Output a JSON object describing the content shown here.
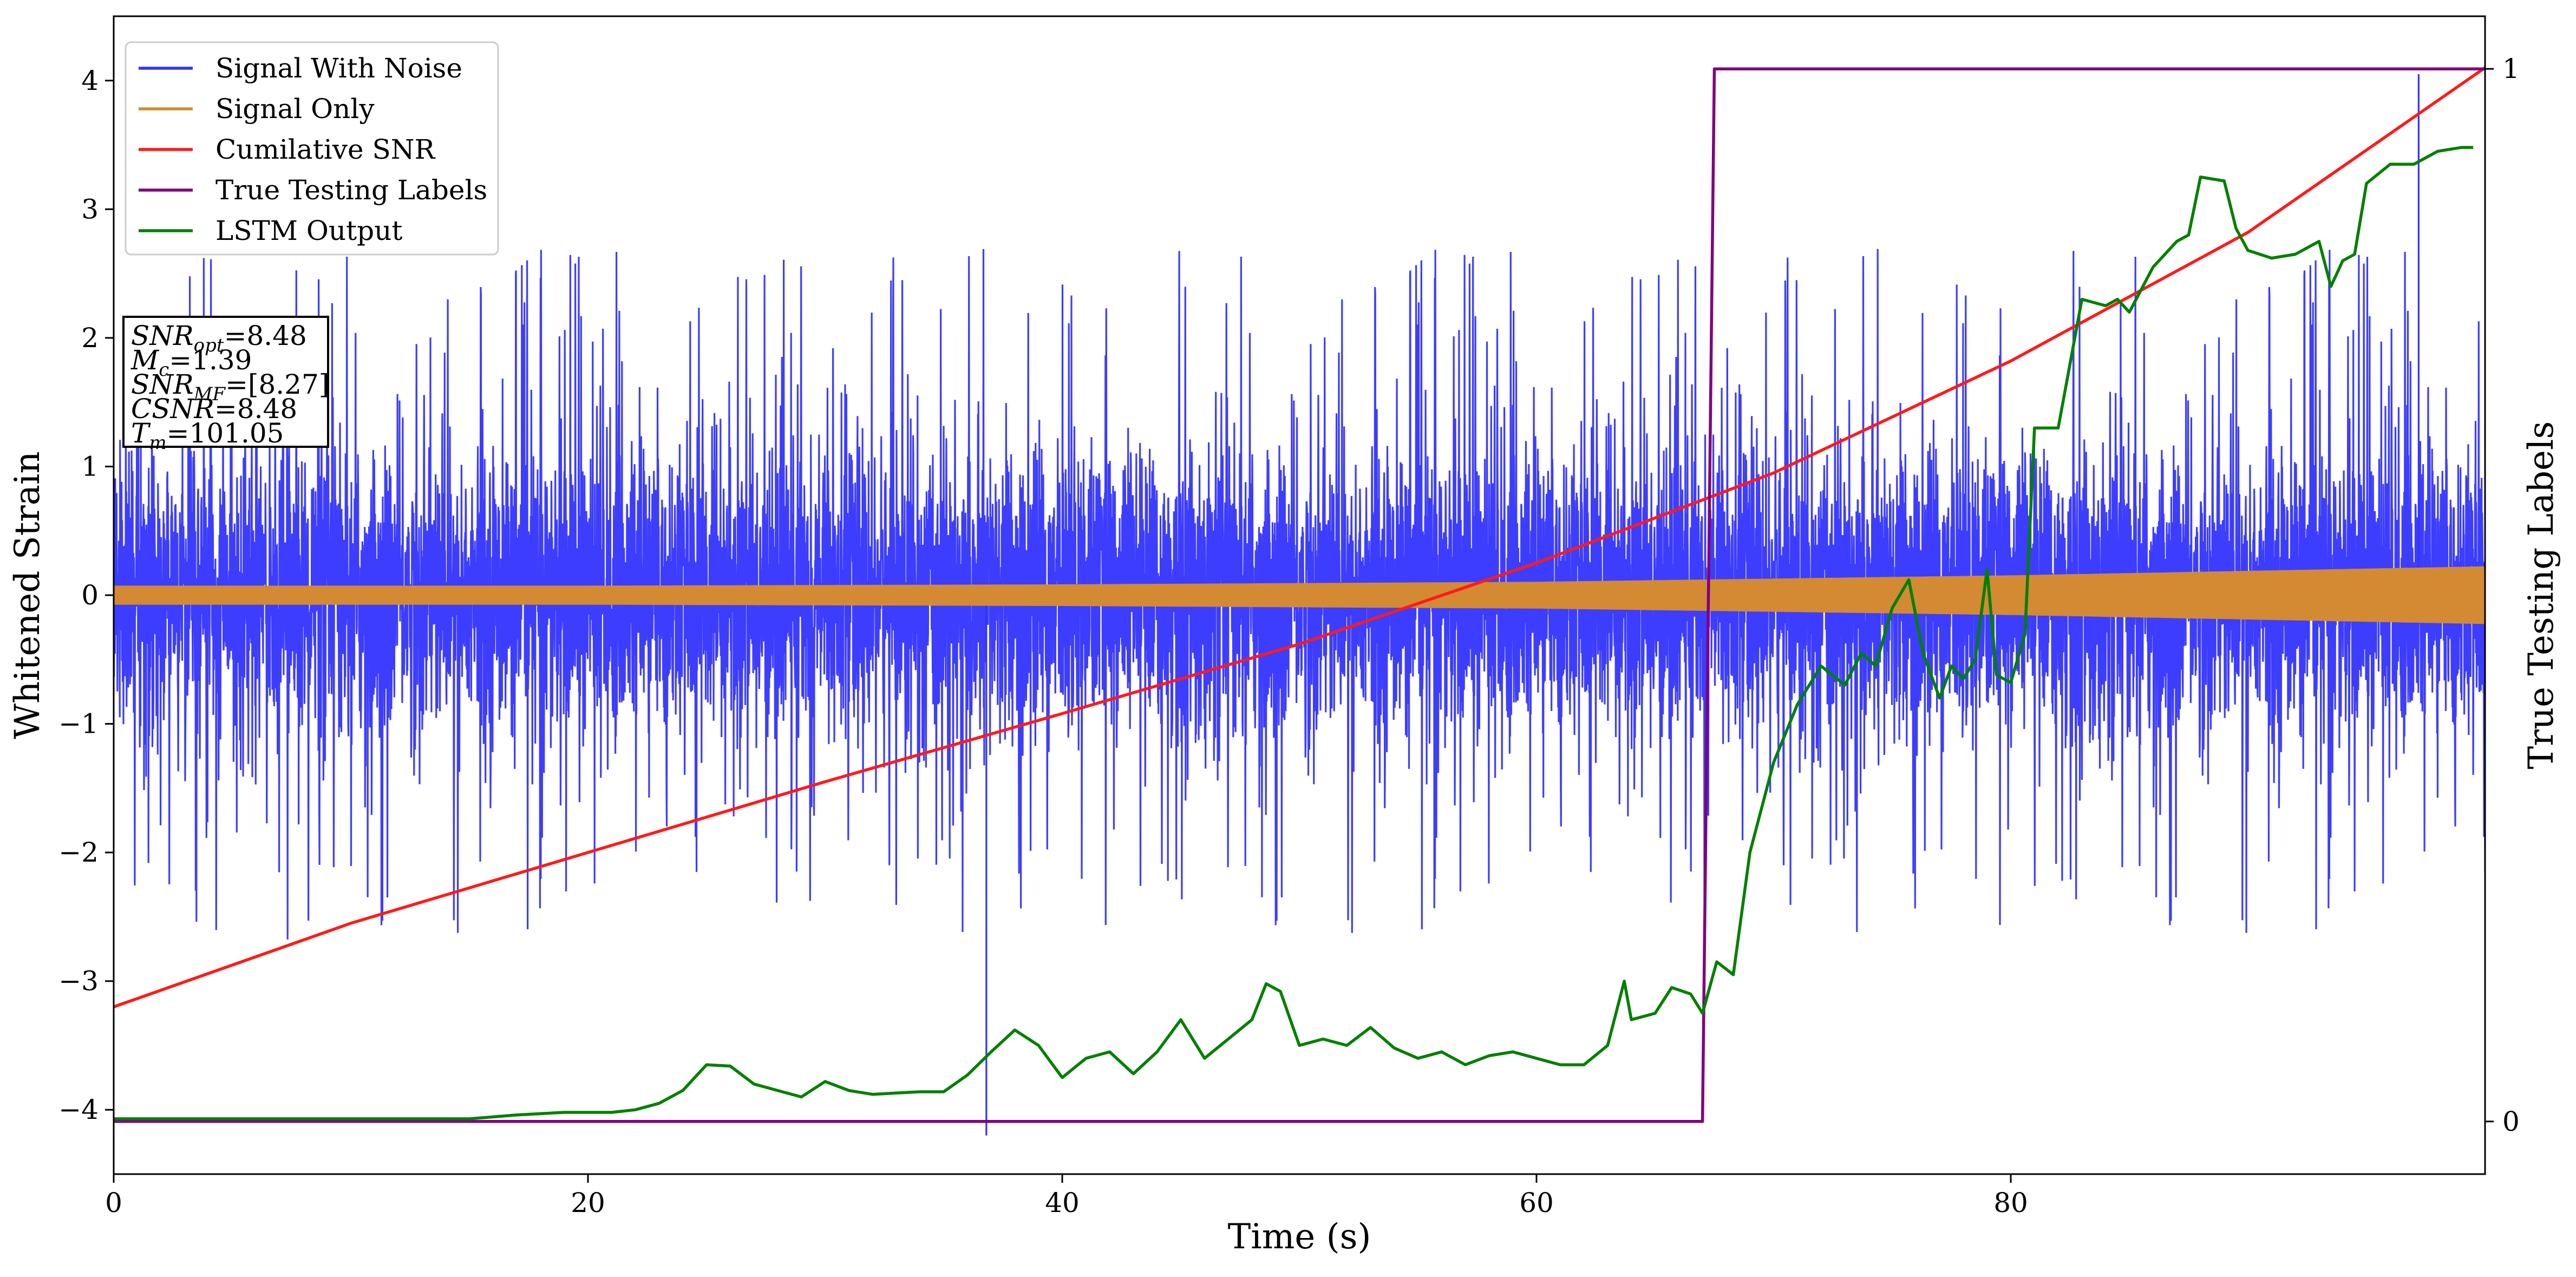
{
  "chart_data": {
    "type": "line",
    "xlabel": "Time (s)",
    "ylabel": "Whitened Strain",
    "y2label": "True Testing Labels",
    "xlim": [
      0,
      100
    ],
    "ylim": [
      -4.5,
      4.5
    ],
    "y2lim": [
      -0.05,
      1.05
    ],
    "xticks": [
      "0",
      "20",
      "40",
      "60",
      "80"
    ],
    "yticks": [
      "−4",
      "−3",
      "−2",
      "−1",
      "0",
      "1",
      "2",
      "3",
      "4"
    ],
    "y2ticks": [
      "0",
      "1"
    ],
    "legend_position": "top-left",
    "grid": false,
    "series": [
      {
        "name": "Signal With Noise",
        "color": "#3333ff",
        "axis": "left",
        "description": "dense noisy strain, approx zero mean",
        "core_band": [
          -0.9,
          0.9
        ],
        "typical_spikes": [
          -2.3,
          2.2
        ],
        "extreme_values": {
          "max": 4.05,
          "max_at": 97.2,
          "min": -4.2,
          "min_at": 36.8
        }
      },
      {
        "name": "Signal Only",
        "color": "#d48a32",
        "axis": "left",
        "description": "chirp envelope growing with time",
        "envelope": [
          [
            0,
            0.07
          ],
          [
            20,
            0.07
          ],
          [
            40,
            0.08
          ],
          [
            60,
            0.1
          ],
          [
            80,
            0.15
          ],
          [
            100,
            0.22
          ]
        ]
      },
      {
        "name": "Cumilative SNR",
        "color": "#ff1a1a",
        "axis": "left",
        "x": [
          0,
          10,
          20,
          30,
          40,
          50,
          60,
          70,
          80,
          90,
          100
        ],
        "y": [
          -3.2,
          -2.55,
          -2.0,
          -1.45,
          -0.92,
          -0.38,
          0.25,
          0.95,
          1.82,
          2.82,
          4.1
        ]
      },
      {
        "name": "True Testing Labels",
        "color": "#800080",
        "axis": "right",
        "x": [
          0,
          67.0,
          67.5,
          100
        ],
        "y": [
          0,
          0,
          1,
          1
        ]
      },
      {
        "name": "LSTM Output",
        "color": "#008000",
        "axis": "left",
        "x": [
          0,
          15,
          17,
          19,
          21,
          22,
          23,
          24,
          25,
          26,
          27,
          28,
          29,
          30,
          31,
          32,
          33,
          34,
          35,
          36,
          37,
          38,
          39,
          40,
          41,
          42,
          43,
          44,
          45,
          46,
          47,
          48,
          48.6,
          49.2,
          50,
          51,
          52,
          53,
          54,
          55,
          56,
          57,
          58,
          59,
          60,
          61,
          62,
          63,
          63.7,
          64,
          65,
          65.7,
          66.5,
          67,
          67.6,
          68.3,
          69,
          70,
          71,
          72,
          73,
          73.7,
          74.3,
          75,
          75.7,
          76.3,
          77,
          77.5,
          78,
          78.5,
          79,
          79.4,
          80,
          80.6,
          81,
          82,
          82.6,
          83,
          84,
          84.5,
          85,
          86,
          87,
          87.5,
          88,
          89,
          89.5,
          90,
          91,
          92,
          93,
          93.5,
          94,
          94.5,
          95,
          96,
          97,
          98,
          99,
          99.5
        ],
        "y": [
          -4.07,
          -4.07,
          -4.04,
          -4.02,
          -4.02,
          -4.0,
          -3.95,
          -3.85,
          -3.65,
          -3.66,
          -3.8,
          -3.85,
          -3.9,
          -3.78,
          -3.85,
          -3.88,
          -3.87,
          -3.86,
          -3.86,
          -3.73,
          -3.55,
          -3.38,
          -3.5,
          -3.75,
          -3.6,
          -3.55,
          -3.72,
          -3.55,
          -3.3,
          -3.6,
          -3.45,
          -3.3,
          -3.02,
          -3.08,
          -3.5,
          -3.45,
          -3.5,
          -3.36,
          -3.52,
          -3.6,
          -3.55,
          -3.65,
          -3.58,
          -3.55,
          -3.6,
          -3.65,
          -3.65,
          -3.5,
          -3.0,
          -3.3,
          -3.25,
          -3.05,
          -3.1,
          -3.25,
          -2.85,
          -2.95,
          -2.0,
          -1.3,
          -0.85,
          -0.55,
          -0.7,
          -0.45,
          -0.55,
          -0.1,
          0.12,
          -0.45,
          -0.8,
          -0.55,
          -0.65,
          -0.5,
          0.2,
          -0.62,
          -0.68,
          -0.3,
          1.3,
          1.3,
          1.9,
          2.3,
          2.25,
          2.3,
          2.2,
          2.55,
          2.75,
          2.8,
          3.25,
          3.22,
          2.85,
          2.68,
          2.62,
          2.65,
          2.75,
          2.4,
          2.6,
          2.65,
          3.2,
          3.35,
          3.35,
          3.45,
          3.48,
          3.48
        ]
      }
    ],
    "annotation": {
      "lines": [
        {
          "base": "SNR",
          "sub": "opt",
          "value": "=8.48"
        },
        {
          "base": "M",
          "sub": "c",
          "value": "=1.39"
        },
        {
          "base": "SNR",
          "sub": "MF",
          "value": "=[8.27]"
        },
        {
          "base": "CSNR",
          "sub": "",
          "value": "=8.48"
        },
        {
          "base": "T",
          "sub": "m",
          "value": "=101.05"
        }
      ]
    }
  }
}
